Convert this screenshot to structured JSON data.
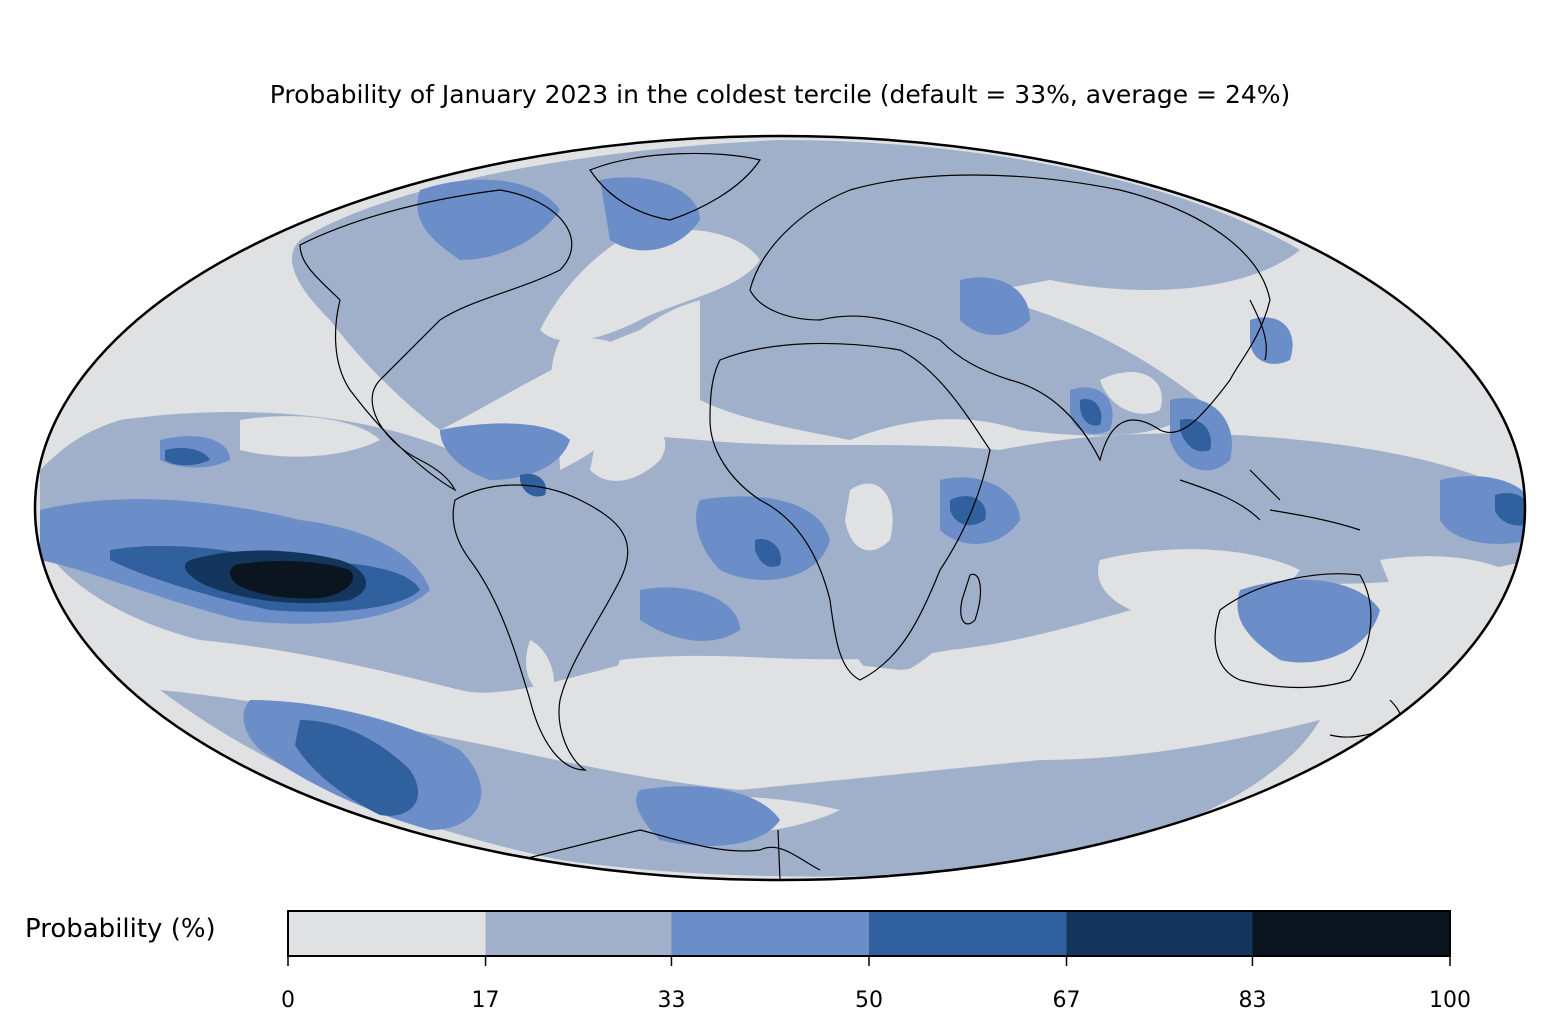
{
  "title": "Probability of January 2023 in the coldest tercile (default = 33%, average = 24%)",
  "colorbar": {
    "label": "Probability (%)",
    "ticks": [
      "0",
      "17",
      "33",
      "50",
      "67",
      "83",
      "100"
    ],
    "bins": [
      {
        "from": 0,
        "to": 17,
        "color": "#dfe1e3"
      },
      {
        "from": 17,
        "to": 33,
        "color": "#a1b0ca"
      },
      {
        "from": 33,
        "to": 50,
        "color": "#6b8dc8"
      },
      {
        "from": 50,
        "to": 67,
        "color": "#30609d"
      },
      {
        "from": 67,
        "to": 83,
        "color": "#15365c"
      },
      {
        "from": 83,
        "to": 100,
        "color": "#0b1520"
      }
    ]
  },
  "projection": "Mollweide",
  "colors": {
    "ocean_bg": "#dfe1e3",
    "coast": "#000000",
    "borders": "#808080"
  }
}
